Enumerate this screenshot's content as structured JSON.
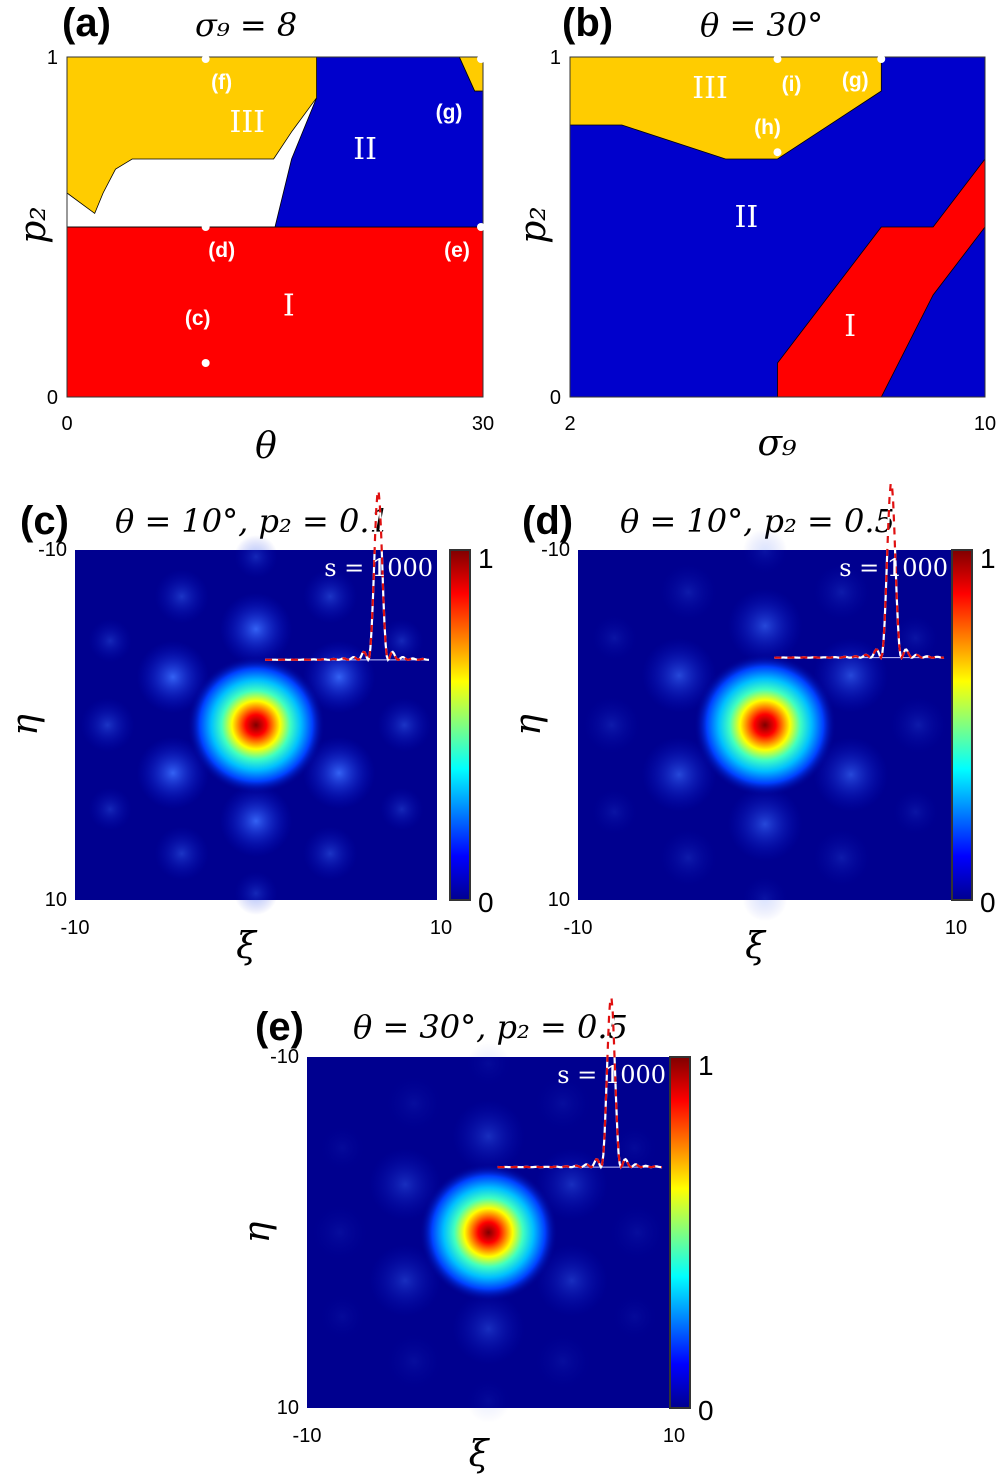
{
  "colors": {
    "region_I": "#ff0000",
    "region_II": "#0000cc",
    "region_III": "#ffcc00",
    "background_field": "#00008f",
    "inset_white": "#ffffff",
    "inset_red": "#e01010"
  },
  "chart_data": [
    {
      "id": "a",
      "type": "heatmap",
      "panel_label": "(a)",
      "title": "σ₉ = 8",
      "xlabel": "θ",
      "ylabel": "p₂",
      "xlim": [
        0,
        30
      ],
      "ylim": [
        0,
        1
      ],
      "xticks": [
        "0",
        "30"
      ],
      "yticks": [
        "0",
        "1"
      ],
      "regions": [
        {
          "name": "I",
          "label": "I",
          "color_key": "region_I",
          "polygon": [
            [
              0,
              0
            ],
            [
              30,
              0
            ],
            [
              30,
              0.5
            ],
            [
              0,
              0.5
            ]
          ],
          "label_at": [
            16,
            0.24
          ]
        },
        {
          "name": "II",
          "label": "II",
          "color_key": "region_II",
          "polygon": [
            [
              0,
              0.5
            ],
            [
              30,
              0.5
            ],
            [
              30,
              0.9
            ],
            [
              29.4,
              0.9
            ],
            [
              28.3,
              1
            ],
            [
              18,
              1
            ],
            [
              18,
              0.88
            ],
            [
              16.2,
              0.7
            ],
            [
              15,
              0.5
            ]
          ],
          "label_at": [
            21.5,
            0.7
          ]
        },
        {
          "name": "III",
          "label": "III",
          "color_key": "region_III",
          "polygon": [
            [
              0,
              1
            ],
            [
              18,
              1
            ],
            [
              18,
              0.88
            ],
            [
              16.2,
              0.78
            ],
            [
              14.9,
              0.7
            ],
            [
              4.7,
              0.7
            ],
            [
              3.5,
              0.67
            ],
            [
              2.6,
              0.6
            ],
            [
              2,
              0.54
            ],
            [
              0,
              0.6
            ]
          ],
          "label_at": [
            13,
            0.78
          ]
        },
        {
          "name": "III",
          "label": "",
          "color_key": "region_III",
          "polygon": [
            [
              28.3,
              1
            ],
            [
              30,
              1
            ],
            [
              30,
              0.9
            ],
            [
              29.4,
              0.9
            ]
          ],
          "label_at": null
        }
      ],
      "points": [
        {
          "label": "(f)",
          "x": 10,
          "y": 1.0
        },
        {
          "label": "(g)",
          "x": 30,
          "y": 1.0
        },
        {
          "label": "(d)",
          "x": 10,
          "y": 0.5
        },
        {
          "label": "(e)",
          "x": 30,
          "y": 0.5
        },
        {
          "label": "(c)",
          "x": 10,
          "y": 0.1
        }
      ]
    },
    {
      "id": "b",
      "type": "heatmap",
      "panel_label": "(b)",
      "title": "θ = 30°",
      "xlabel": "σ₉",
      "ylabel": "p₂",
      "xlim": [
        2,
        10
      ],
      "ylim": [
        0,
        1
      ],
      "xticks": [
        "2",
        "10"
      ],
      "yticks": [
        "0",
        "1"
      ],
      "regions": [
        {
          "name": "II",
          "label": "II",
          "color_key": "region_II",
          "polygon": [
            [
              2,
              0
            ],
            [
              10,
              0
            ],
            [
              10,
              1
            ],
            [
              2,
              1
            ]
          ],
          "label_at": [
            5.4,
            0.5
          ]
        },
        {
          "name": "III",
          "label": "III",
          "color_key": "region_III",
          "polygon": [
            [
              2,
              1
            ],
            [
              8,
              1
            ],
            [
              8,
              0.9
            ],
            [
              6,
              0.7
            ],
            [
              5,
              0.7
            ],
            [
              3,
              0.8
            ],
            [
              2,
              0.8
            ],
            [
              2,
              0.9
            ]
          ],
          "label_at": [
            4.7,
            0.88
          ]
        },
        {
          "name": "I",
          "label": "I",
          "color_key": "region_I",
          "polygon": [
            [
              6,
              0
            ],
            [
              8,
              0
            ],
            [
              9,
              0.3
            ],
            [
              10,
              0.5
            ],
            [
              10,
              0.7
            ],
            [
              9,
              0.5
            ],
            [
              8,
              0.5
            ],
            [
              6,
              0.1
            ]
          ],
          "label_at": [
            7.4,
            0.18
          ]
        }
      ],
      "points": [
        {
          "label": "(i)",
          "x": 6,
          "y": 1.0
        },
        {
          "label": "(g)",
          "x": 8,
          "y": 1.0
        },
        {
          "label": "(h)",
          "x": 6,
          "y": 0.72
        }
      ]
    },
    {
      "id": "c",
      "type": "heatmap",
      "panel_label": "(c)",
      "title": "θ = 10°, p₂ = 0.1",
      "xlabel": "ξ",
      "ylabel": "η",
      "xlim": [
        -10,
        10
      ],
      "ylim": [
        10,
        -10
      ],
      "xticks": [
        "-10",
        "10"
      ],
      "yticks": [
        "-10",
        "10"
      ],
      "colorbar": {
        "min": "0",
        "max": "1",
        "colormap": "jet"
      },
      "inset_label": "s = 1000",
      "pattern": {
        "central_peak": 1.0,
        "ring1_intensity": 0.3,
        "ring2_intensity": 0.12,
        "symmetry": 6
      }
    },
    {
      "id": "d",
      "type": "heatmap",
      "panel_label": "(d)",
      "title": "θ = 10°, p₂ = 0.5",
      "xlabel": "ξ",
      "ylabel": "η",
      "xlim": [
        -10,
        10
      ],
      "ylim": [
        10,
        -10
      ],
      "xticks": [
        "-10",
        "10"
      ],
      "yticks": [
        "-10",
        "10"
      ],
      "colorbar": {
        "min": "0",
        "max": "1",
        "colormap": "jet"
      },
      "inset_label": "s = 1000",
      "pattern": {
        "central_peak": 1.0,
        "ring1_intensity": 0.22,
        "ring2_intensity": 0.06,
        "symmetry": 6
      }
    },
    {
      "id": "e",
      "type": "heatmap",
      "panel_label": "(e)",
      "title": "θ = 30°, p₂ = 0.5",
      "xlabel": "ξ",
      "ylabel": "η",
      "xlim": [
        -10,
        10
      ],
      "ylim": [
        10,
        -10
      ],
      "xticks": [
        "-10",
        "10"
      ],
      "yticks": [
        "-10",
        "10"
      ],
      "colorbar": {
        "min": "0",
        "max": "1",
        "colormap": "jet"
      },
      "inset_label": "s = 1000",
      "pattern": {
        "central_peak": 1.0,
        "ring1_intensity": 0.14,
        "ring2_intensity": 0.03,
        "symmetry": 6
      }
    }
  ]
}
